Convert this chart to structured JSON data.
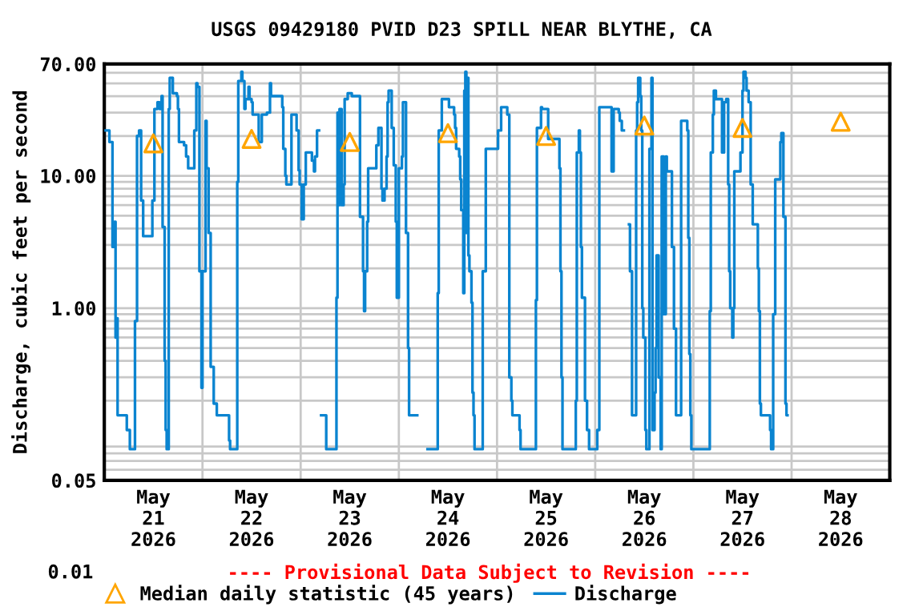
{
  "chart_data": {
    "type": "step",
    "title": "USGS 09429180 PVID D23 SPILL NEAR BLYTHE, CA",
    "ylabel": "Discharge, cubic feet per second",
    "annotations": [
      "0.01",
      "---- Provisional Data Subject to Revision ----"
    ],
    "log": "y",
    "grid": true,
    "legend": "bottom",
    "xlim": [
      "2026-05-21",
      "2026-05-29"
    ],
    "xticks": [
      {
        "value": "2026-05-21",
        "label": null
      },
      {
        "value": "2026-05-22",
        "label": null
      },
      {
        "value": "2026-05-23",
        "label": null
      },
      {
        "value": "2026-05-24",
        "label": null
      },
      {
        "value": "2026-05-25",
        "label": null
      },
      {
        "value": "2026-05-26",
        "label": null
      },
      {
        "value": "2026-05-27",
        "label": null
      },
      {
        "value": "2026-05-28",
        "label": null
      },
      {
        "value": "2026-05-29",
        "label": null
      },
      {
        "value": "2026-05-21T12:00",
        "label": "May\n21\n2026"
      },
      {
        "value": "2026-05-22T12:00",
        "label": "May\n22\n2026"
      },
      {
        "value": "2026-05-23T12:00",
        "label": "May\n23\n2026"
      },
      {
        "value": "2026-05-24T12:00",
        "label": "May\n24\n2026"
      },
      {
        "value": "2026-05-25T12:00",
        "label": "May\n25\n2026"
      },
      {
        "value": "2026-05-26T12:00",
        "label": "May\n26\n2026"
      },
      {
        "value": "2026-05-27T12:00",
        "label": "May\n27\n2026"
      },
      {
        "value": "2026-05-28T12:00",
        "label": "May\n28\n2026"
      }
    ],
    "ylim": [
      0.05,
      70
    ],
    "yticks": [
      {
        "value": 0.05,
        "label": "0.05"
      },
      {
        "value": 1,
        "label": "1.00"
      },
      {
        "value": 10,
        "label": "10.00"
      },
      {
        "value": 70,
        "label": "70.00"
      }
    ],
    "series": [
      {
        "name": "Median daily statistic (45 years)",
        "type": "scatter",
        "marker": "triangle",
        "color": "#ffa500",
        "x": [
          "2026-05-21T12:00",
          "2026-05-22T12:00",
          "2026-05-23T12:00",
          "2026-05-24T12:00",
          "2026-05-25T12:00",
          "2026-05-26T12:00",
          "2026-05-27T12:00",
          "2026-05-28T12:00"
        ],
        "values": [
          17.6,
          19,
          18,
          21,
          20,
          24,
          23,
          25.6
        ]
      },
      {
        "name": "Discharge",
        "color": "#0a84d0",
        "x": [
          "2026-05-21T00:00",
          "2026-05-21T01:15",
          "2026-05-21T02:00",
          "2026-05-21T02:30",
          "2026-05-21T02:45",
          "2026-05-21T03:00",
          "2026-05-21T03:15",
          "2026-05-21T05:30",
          "2026-05-21T06:15",
          "2026-05-21T07:30",
          "2026-05-21T08:00",
          "2026-05-21T08:30",
          "2026-05-21T09:00",
          "2026-05-21T09:30",
          "2026-05-21T11:45",
          "2026-05-21T12:15",
          "2026-05-21T13:00",
          "2026-05-21T13:30",
          "2026-05-21T14:00",
          "2026-05-21T14:15",
          "2026-05-21T14:45",
          "2026-05-21T15:00",
          "2026-05-21T15:15",
          "2026-05-21T15:45",
          "2026-05-21T16:00",
          "2026-05-21T16:45",
          "2026-05-21T17:45",
          "2026-05-21T18:00",
          "2026-05-21T18:15",
          "2026-05-21T19:30",
          "2026-05-21T20:00",
          "2026-05-21T20:30",
          "2026-05-21T22:00",
          "2026-05-21T22:30",
          "2026-05-21T22:45",
          "2026-05-21T23:15",
          "2026-05-21T23:45",
          "2026-05-22T00:00",
          "2026-05-22T00:45",
          "2026-05-22T01:00",
          "2026-05-22T01:30",
          "2026-05-22T02:00",
          "2026-05-22T02:45",
          "2026-05-22T03:30",
          "2026-05-22T06:30",
          "2026-05-22T06:45",
          "2026-05-22T08:30",
          "2026-05-22T08:45",
          "2026-05-22T09:30",
          "2026-05-22T09:45",
          "2026-05-22T10:15",
          "2026-05-22T10:30",
          "2026-05-22T11:15",
          "2026-05-22T11:30",
          "2026-05-22T12:00",
          "2026-05-22T12:15",
          "2026-05-22T13:45",
          "2026-05-22T14:30",
          "2026-05-22T15:45",
          "2026-05-22T16:30",
          "2026-05-22T16:45",
          "2026-05-22T19:30",
          "2026-05-22T19:45",
          "2026-05-22T20:15",
          "2026-05-22T20:30",
          "2026-05-22T21:45",
          "2026-05-22T23:00",
          "2026-05-22T23:30",
          "2026-05-22T23:45",
          "2026-05-23T00:15",
          "2026-05-23T00:45",
          "2026-05-23T01:15",
          "2026-05-23T02:45",
          "2026-05-23T03:15",
          "2026-05-23T03:30",
          "2026-05-23T04:00",
          "2026-05-23T04:30",
          "2026-05-23T05:00",
          "2026-05-23T06:15",
          "2026-05-23T08:45",
          "2026-05-23T09:00",
          "2026-05-23T09:15",
          "2026-05-23T09:30",
          "2026-05-23T10:00",
          "2026-05-23T10:30",
          "2026-05-23T10:45",
          "2026-05-23T11:30",
          "2026-05-23T12:30",
          "2026-05-23T14:30",
          "2026-05-23T15:15",
          "2026-05-23T15:30",
          "2026-05-23T15:45",
          "2026-05-23T16:15",
          "2026-05-23T16:30",
          "2026-05-23T18:30",
          "2026-05-23T19:00",
          "2026-05-23T19:45",
          "2026-05-23T20:00",
          "2026-05-23T20:30",
          "2026-05-23T21:00",
          "2026-05-23T21:15",
          "2026-05-23T21:30",
          "2026-05-23T22:15",
          "2026-05-23T22:45",
          "2026-05-23T23:15",
          "2026-05-23T23:30",
          "2026-05-24T00:00",
          "2026-05-24T00:45",
          "2026-05-24T01:00",
          "2026-05-24T01:45",
          "2026-05-24T02:15",
          "2026-05-24T02:30",
          "2026-05-24T04:30",
          "2026-05-24T07:00",
          "2026-05-24T09:30",
          "2026-05-24T09:45",
          "2026-05-24T10:30",
          "2026-05-24T12:15",
          "2026-05-24T13:30",
          "2026-05-24T13:45",
          "2026-05-24T14:00",
          "2026-05-24T14:45",
          "2026-05-24T15:00",
          "2026-05-24T15:15",
          "2026-05-24T15:45",
          "2026-05-24T16:00",
          "2026-05-24T16:15",
          "2026-05-24T16:30",
          "2026-05-24T16:45",
          "2026-05-24T17:00",
          "2026-05-24T17:15",
          "2026-05-24T17:45",
          "2026-05-24T18:00",
          "2026-05-24T18:15",
          "2026-05-24T18:30",
          "2026-05-24T20:30",
          "2026-05-24T21:15",
          "2026-05-25T00:15",
          "2026-05-25T01:00",
          "2026-05-25T02:30",
          "2026-05-25T03:00",
          "2026-05-25T03:30",
          "2026-05-25T03:45",
          "2026-05-25T05:30",
          "2026-05-25T05:45",
          "2026-05-25T09:30",
          "2026-05-25T09:45",
          "2026-05-25T10:45",
          "2026-05-25T11:00",
          "2026-05-25T12:30",
          "2026-05-25T15:15",
          "2026-05-25T15:30",
          "2026-05-25T15:45",
          "2026-05-25T16:00",
          "2026-05-25T19:15",
          "2026-05-25T19:30",
          "2026-05-25T20:00",
          "2026-05-25T20:15",
          "2026-05-25T20:30",
          "2026-05-25T20:45",
          "2026-05-25T21:30",
          "2026-05-25T22:00",
          "2026-05-25T22:30",
          "2026-05-26T00:30",
          "2026-05-26T01:00",
          "2026-05-26T04:00",
          "2026-05-26T04:30",
          "2026-05-26T05:45",
          "2026-05-26T06:00",
          "2026-05-26T06:30",
          "2026-05-26T07:00",
          "2026-05-26T08:15",
          "2026-05-26T08:30",
          "2026-05-26T09:00",
          "2026-05-26T10:00",
          "2026-05-26T10:15",
          "2026-05-26T10:30",
          "2026-05-26T11:00",
          "2026-05-26T11:15",
          "2026-05-26T11:30",
          "2026-05-26T11:45",
          "2026-05-26T12:15",
          "2026-05-26T12:30",
          "2026-05-26T13:15",
          "2026-05-26T13:45",
          "2026-05-26T14:00",
          "2026-05-26T14:30",
          "2026-05-26T14:45",
          "2026-05-26T15:00",
          "2026-05-26T15:30",
          "2026-05-26T16:00",
          "2026-05-26T16:15",
          "2026-05-26T16:45",
          "2026-05-26T17:15",
          "2026-05-26T17:30",
          "2026-05-26T18:45",
          "2026-05-26T19:15",
          "2026-05-26T19:45",
          "2026-05-26T21:00",
          "2026-05-26T22:30",
          "2026-05-26T22:45",
          "2026-05-26T23:00",
          "2026-05-26T23:15",
          "2026-05-26T23:30",
          "2026-05-27T04:00",
          "2026-05-27T04:15",
          "2026-05-27T04:45",
          "2026-05-27T05:00",
          "2026-05-27T05:30",
          "2026-05-27T07:00",
          "2026-05-27T07:30",
          "2026-05-27T08:00",
          "2026-05-27T08:30",
          "2026-05-27T08:45",
          "2026-05-27T09:00",
          "2026-05-27T09:30",
          "2026-05-27T09:45",
          "2026-05-27T10:00",
          "2026-05-27T11:30",
          "2026-05-27T12:00",
          "2026-05-27T12:15",
          "2026-05-27T12:45",
          "2026-05-27T13:00",
          "2026-05-27T13:30",
          "2026-05-27T14:00",
          "2026-05-27T14:30",
          "2026-05-27T15:45",
          "2026-05-27T16:00",
          "2026-05-27T16:15",
          "2026-05-27T16:30",
          "2026-05-27T18:45",
          "2026-05-27T19:00",
          "2026-05-27T19:30",
          "2026-05-27T20:00",
          "2026-05-27T21:15",
          "2026-05-27T21:30",
          "2026-05-27T22:00",
          "2026-05-27T22:30",
          "2026-05-27T22:45",
          "2026-05-27T23:00"
        ],
        "values": [
          22,
          18,
          2.9,
          4.5,
          0.6,
          0.84,
          0.155,
          0.12,
          0.086,
          0.8,
          20,
          22,
          6.5,
          3.5,
          6.5,
          32,
          36,
          32,
          40,
          4.1,
          0.4,
          0.12,
          0.086,
          32,
          55,
          42,
          40,
          32,
          18,
          17,
          14,
          11.4,
          22,
          50,
          47,
          1.9,
          0.25,
          1.9,
          26,
          11.4,
          3.7,
          0.36,
          0.19,
          0.155,
          0.1,
          0.086,
          9,
          52,
          61,
          52,
          32,
          38,
          47,
          38,
          36,
          29,
          18,
          29,
          30,
          50,
          40,
          33,
          16,
          10,
          8.6,
          29,
          22,
          11,
          8.6,
          4.7,
          8.6,
          15,
          13,
          10.8,
          14,
          22,
          null,
          0.155,
          0.086,
          1.2,
          30,
          6,
          32,
          6,
          8.6,
          38,
          42,
          40,
          4.9,
          1.9,
          0.95,
          1.9,
          4.5,
          11.4,
          17,
          23,
          8,
          6.5,
          8,
          14,
          36,
          44,
          23,
          12,
          4.5,
          1.2,
          11.4,
          14,
          36,
          3.7,
          0.5,
          0.155,
          null,
          0.086,
          1.3,
          22,
          38,
          33,
          29,
          23,
          16,
          14,
          9.4,
          5.5,
          1.3,
          44,
          61,
          3.7,
          55,
          2.5,
          1.9,
          1.1,
          0.23,
          0.155,
          0.086,
          1.9,
          16,
          22,
          33,
          29,
          0.3,
          0.2,
          0.155,
          0.12,
          0.086,
          1.15,
          23,
          33,
          32,
          19,
          11.4,
          1.9,
          0.3,
          0.086,
          0.2,
          15,
          22,
          15,
          2.9,
          1.2,
          0.2,
          0.12,
          0.086,
          0.12,
          33,
          10.8,
          32,
          30,
          26,
          22,
          null,
          4.3,
          1.9,
          0.155,
          22,
          36,
          55,
          40,
          22,
          1,
          0.6,
          0.12,
          0.086,
          16,
          55,
          0.12,
          0.23,
          0.5,
          2.5,
          0.3,
          0.086,
          14,
          0.9,
          14,
          10.8,
          2.9,
          0.7,
          0.155,
          26,
          22,
          3.4,
          0.45,
          0.155,
          0.086,
          0.95,
          15,
          29,
          44,
          38,
          15,
          36,
          38,
          8.6,
          1.9,
          1,
          0.6,
          1,
          10.8,
          15,
          44,
          61,
          55,
          44,
          36,
          8.6,
          4.3,
          2,
          0.95,
          0.19,
          0.155,
          0.12,
          0.086,
          0.9,
          9.4,
          18,
          21,
          4.9,
          0.19,
          0.155,
          0.155
        ]
      }
    ]
  }
}
